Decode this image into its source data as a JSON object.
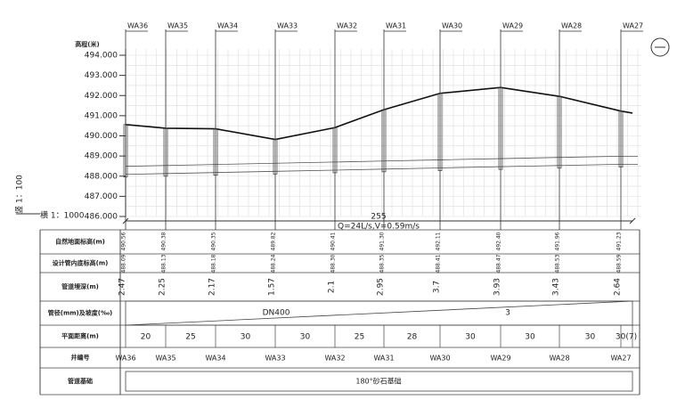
{
  "profile": {
    "y_axis_label": "高程(米)",
    "y_ticks": [
      "494.000",
      "493.000",
      "492.000",
      "491.000",
      "490.000",
      "489.000",
      "488.000",
      "487.000",
      "486.000"
    ],
    "scale_vertical": "竖 1：100",
    "scale_horizontal": "横 1：1000",
    "total_length": "255",
    "flow_note": "Q=24L/s,V=0.59m/s"
  },
  "wells": [
    {
      "name": "WA36",
      "ground": "490.56",
      "invert": "488.09",
      "depth": "2.47"
    },
    {
      "name": "WA35",
      "ground": "490.38",
      "invert": "488.13",
      "depth": "2.25"
    },
    {
      "name": "WA34",
      "ground": "490.35",
      "invert": "488.18",
      "depth": "2.17"
    },
    {
      "name": "WA33",
      "ground": "489.82",
      "invert": "488.24",
      "depth": "1.57"
    },
    {
      "name": "WA32",
      "ground": "490.41",
      "invert": "488.30",
      "depth": "2.1"
    },
    {
      "name": "WA31",
      "ground": "491.30",
      "invert": "488.35",
      "depth": "2.95"
    },
    {
      "name": "WA30",
      "ground": "492.11",
      "invert": "488.41",
      "depth": "3.7"
    },
    {
      "name": "WA29",
      "ground": "492.40",
      "invert": "488.47",
      "depth": "3.93"
    },
    {
      "name": "WA28",
      "ground": "491.96",
      "invert": "488.53",
      "depth": "3.43"
    },
    {
      "name": "WA27",
      "ground": "491.23",
      "invert": "488.59",
      "depth": "2.64"
    }
  ],
  "table": {
    "row_labels": [
      "自然地面标高(m)",
      "设计管内底标高(m)",
      "管道埋深(m)",
      "管径(mm)及坡度(‰)",
      "平面距离(m)",
      "井编号",
      "管道基础"
    ],
    "pipe_size": "DN400",
    "slope": "3",
    "distances": [
      "20",
      "25",
      "30",
      "30",
      "25",
      "28",
      "30",
      "30",
      "30",
      "30(7)"
    ],
    "foundation": "180°砂石基础"
  }
}
